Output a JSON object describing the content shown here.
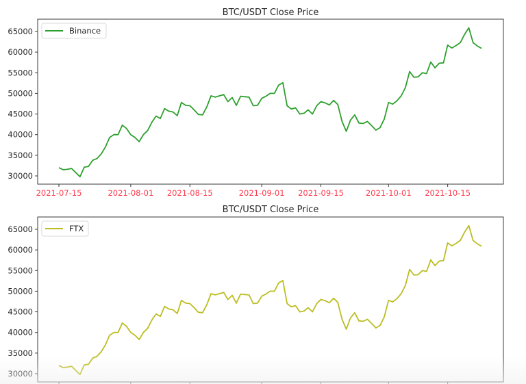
{
  "chart_data": [
    {
      "type": "line",
      "title": "BTC/USDT Close Price",
      "xlabel": "",
      "ylabel": "",
      "ylim": [
        28000,
        67500
      ],
      "yticks": [
        30000,
        35000,
        40000,
        45000,
        50000,
        55000,
        60000,
        65000
      ],
      "xticks": [
        "2021-07-15",
        "2021-08-01",
        "2021-08-15",
        "2021-09-01",
        "2021-09-15",
        "2021-10-01",
        "2021-10-15"
      ],
      "xtick_color": "#ff3b4e",
      "legend": {
        "position": "upper left",
        "entries": [
          "Binance"
        ]
      },
      "grid": false,
      "series": [
        {
          "name": "Binance",
          "color": "#2ca02c",
          "start_date": "2021-07-15",
          "interval": "1d",
          "values": [
            32000,
            31500,
            31600,
            31800,
            30800,
            29800,
            32100,
            32300,
            33800,
            34200,
            35300,
            37000,
            39300,
            40000,
            40000,
            42300,
            41500,
            40000,
            39300,
            38300,
            40000,
            41000,
            43000,
            44500,
            43900,
            46300,
            45700,
            45500,
            44600,
            47800,
            47100,
            47000,
            46000,
            44900,
            44800,
            46700,
            49400,
            49100,
            49400,
            49700,
            48000,
            49000,
            47100,
            49300,
            49200,
            49100,
            47000,
            47100,
            48800,
            49300,
            50000,
            50000,
            52000,
            52600,
            47000,
            46200,
            46500,
            45000,
            45200,
            46000,
            45000,
            47000,
            48000,
            47700,
            47200,
            48300,
            47300,
            43200,
            40800,
            43500,
            44800,
            42800,
            42700,
            43200,
            42200,
            41100,
            41700,
            43800,
            47800,
            47400,
            48200,
            49400,
            51400,
            55300,
            53900,
            54000,
            55000,
            54800,
            57600,
            56200,
            57300,
            57400,
            61700,
            61000,
            61600,
            62300,
            64300,
            65900,
            62300,
            61500,
            60900
          ]
        }
      ]
    },
    {
      "type": "line",
      "title": "BTC/USDT Close Price",
      "xlabel": "",
      "ylabel": "",
      "ylim": [
        28000,
        67500
      ],
      "yticks": [
        30000,
        35000,
        40000,
        45000,
        50000,
        55000,
        60000,
        65000
      ],
      "xticks": [],
      "legend": {
        "position": "upper left",
        "entries": [
          "FTX"
        ]
      },
      "grid": false,
      "series": [
        {
          "name": "FTX",
          "color": "#bcbd22",
          "start_date": "2021-07-15",
          "interval": "1d",
          "values": [
            32000,
            31500,
            31600,
            31800,
            30800,
            29800,
            32100,
            32300,
            33800,
            34200,
            35300,
            37000,
            39300,
            40000,
            40000,
            42300,
            41500,
            40000,
            39300,
            38300,
            40000,
            41000,
            43000,
            44500,
            43900,
            46300,
            45700,
            45500,
            44600,
            47800,
            47100,
            47000,
            46000,
            44900,
            44800,
            46700,
            49400,
            49100,
            49400,
            49700,
            48000,
            49000,
            47100,
            49300,
            49200,
            49100,
            47000,
            47100,
            48800,
            49300,
            50000,
            50000,
            52000,
            52600,
            47000,
            46200,
            46500,
            45000,
            45200,
            46000,
            45000,
            47000,
            48000,
            47700,
            47200,
            48300,
            47300,
            43200,
            40800,
            43500,
            44800,
            42800,
            42700,
            43200,
            42200,
            41100,
            41700,
            43800,
            47800,
            47400,
            48200,
            49400,
            51400,
            55300,
            53900,
            54000,
            55000,
            54800,
            57600,
            56200,
            57300,
            57400,
            61700,
            61000,
            61600,
            62300,
            64300,
            65900,
            62300,
            61500,
            60900
          ]
        }
      ]
    }
  ],
  "top_chart": {
    "title": "BTC/USDT Close Price",
    "legend_label": "Binance",
    "yticks": [
      "65000",
      "60000",
      "55000",
      "50000",
      "45000",
      "40000",
      "35000",
      "30000"
    ],
    "xticks": [
      "2021-07-15",
      "2021-08-01",
      "2021-08-15",
      "2021-09-01",
      "2021-09-15",
      "2021-10-01",
      "2021-10-15"
    ]
  },
  "bottom_chart": {
    "title": "BTC/USDT Close Price",
    "legend_label": "FTX",
    "yticks": [
      "65000",
      "60000",
      "55000",
      "50000",
      "45000",
      "40000",
      "35000",
      "30000"
    ]
  }
}
